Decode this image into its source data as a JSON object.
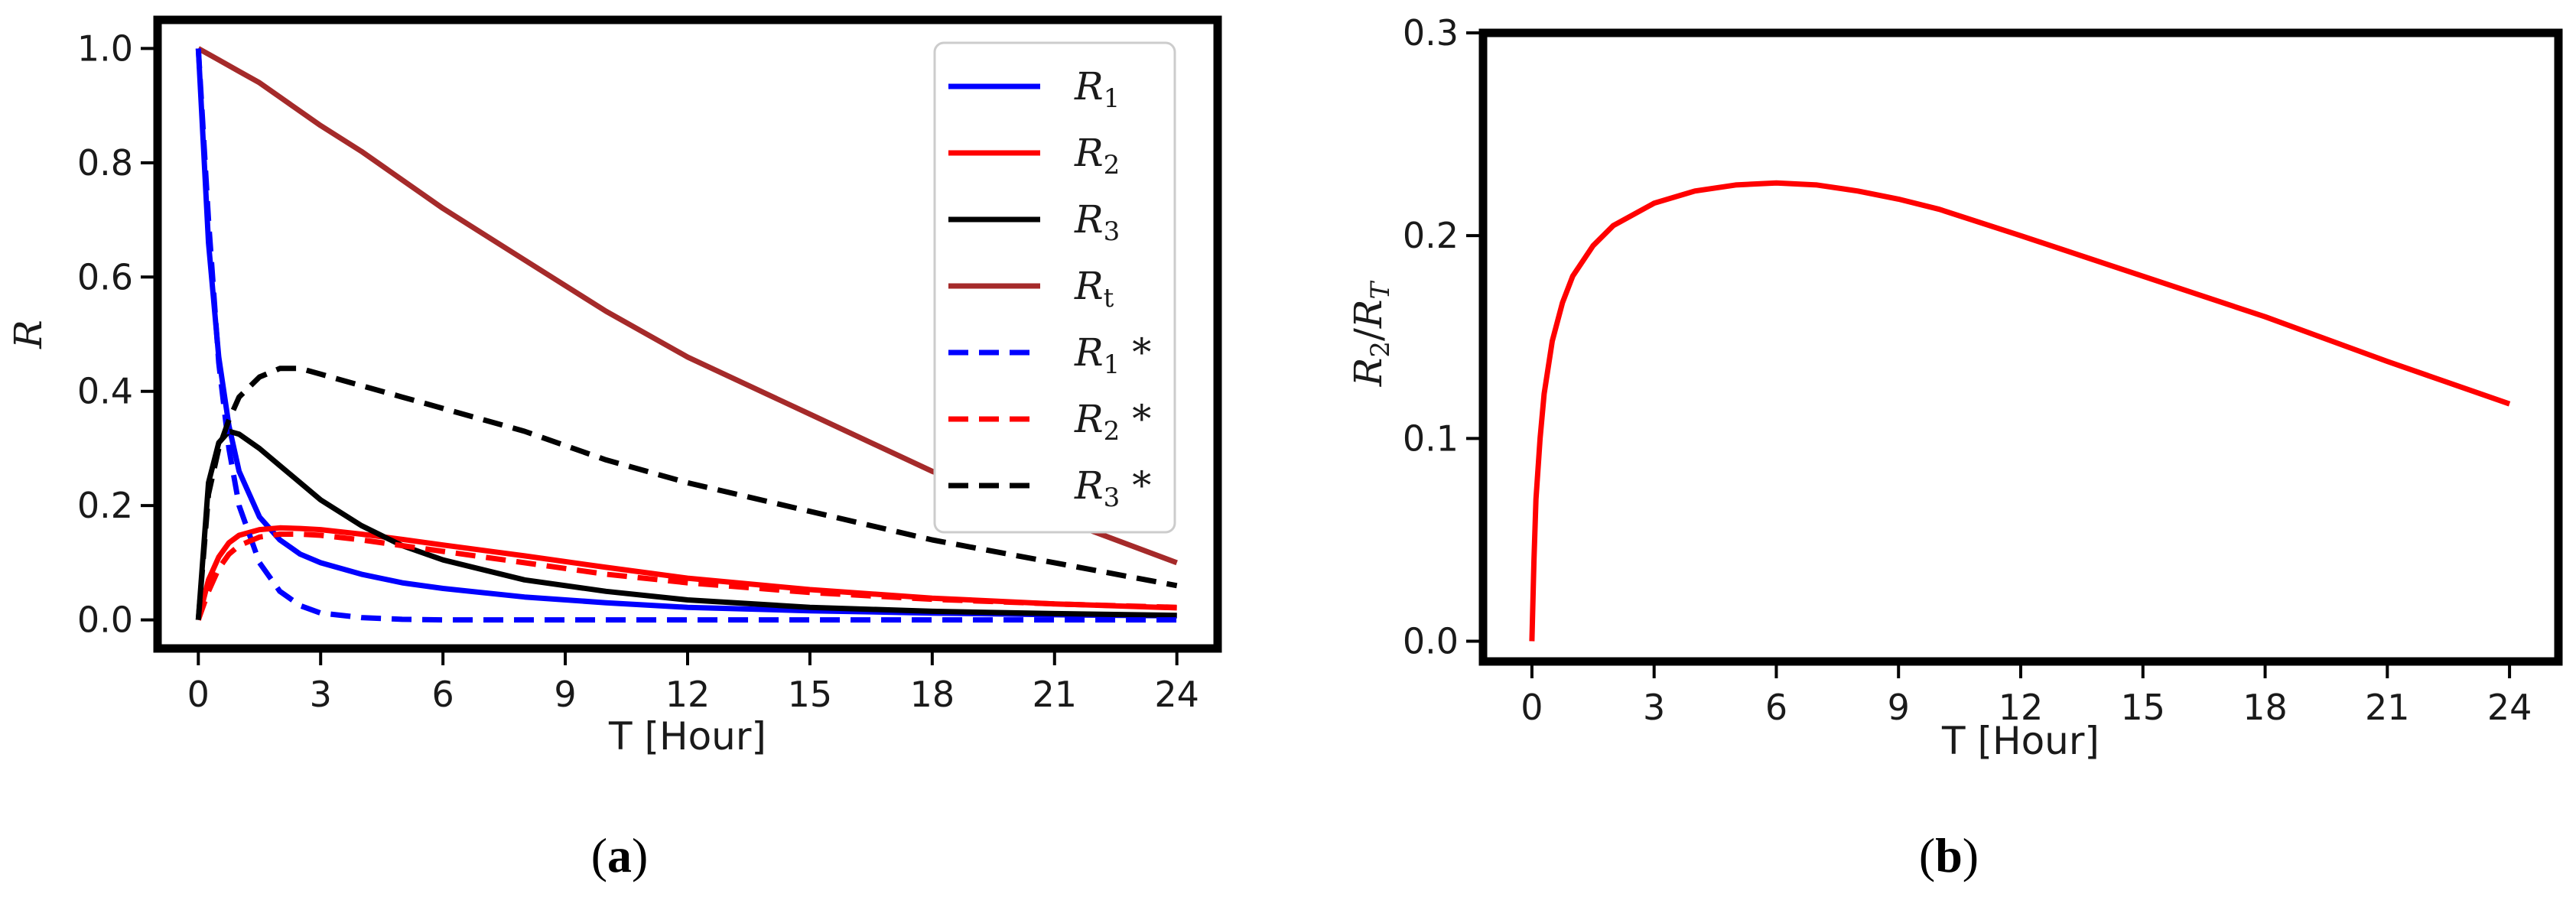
{
  "chart_data": [
    {
      "panel": "(a)",
      "type": "line",
      "xlabel": "T [Hour]",
      "ylabel": "R",
      "xlim": [
        -1,
        25
      ],
      "ylim": [
        -0.05,
        1.05
      ],
      "xticks": [
        0,
        3,
        6,
        9,
        12,
        15,
        18,
        21,
        24
      ],
      "yticks": [
        0.0,
        0.2,
        0.4,
        0.6,
        0.8,
        1.0
      ],
      "ytick_labels": [
        "0.0",
        "0.2",
        "0.4",
        "0.6",
        "0.8",
        "1.0"
      ],
      "grid": false,
      "legend_position": "top-right",
      "x": [
        0,
        0.25,
        0.5,
        0.75,
        1,
        1.5,
        2,
        2.5,
        3,
        4,
        5,
        6,
        8,
        10,
        12,
        15,
        18,
        21,
        24
      ],
      "series": [
        {
          "name": "R_1",
          "label_main": "R",
          "label_sub": "1",
          "label_suffix": "",
          "color": "#0000ff",
          "dash": "solid",
          "values": [
            1.0,
            0.66,
            0.46,
            0.34,
            0.26,
            0.18,
            0.14,
            0.115,
            0.1,
            0.08,
            0.065,
            0.055,
            0.04,
            0.03,
            0.022,
            0.016,
            0.012,
            0.009,
            0.007
          ]
        },
        {
          "name": "R_2",
          "label_main": "R",
          "label_sub": "2",
          "label_suffix": "",
          "color": "#ff0000",
          "dash": "solid",
          "values": [
            0.0,
            0.07,
            0.11,
            0.135,
            0.148,
            0.158,
            0.161,
            0.16,
            0.158,
            0.15,
            0.141,
            0.131,
            0.112,
            0.092,
            0.073,
            0.053,
            0.038,
            0.028,
            0.021
          ]
        },
        {
          "name": "R_3",
          "label_main": "R",
          "label_sub": "3",
          "label_suffix": "",
          "color": "#000000",
          "dash": "solid",
          "values": [
            0.0,
            0.24,
            0.31,
            0.33,
            0.325,
            0.3,
            0.27,
            0.24,
            0.21,
            0.165,
            0.13,
            0.105,
            0.07,
            0.05,
            0.035,
            0.022,
            0.015,
            0.011,
            0.008
          ]
        },
        {
          "name": "R_t",
          "label_main": "R",
          "label_sub": "t",
          "label_suffix": "",
          "color": "#a52a2a",
          "dash": "solid",
          "values": [
            1.0,
            0.99,
            0.98,
            0.97,
            0.96,
            0.94,
            0.915,
            0.89,
            0.865,
            0.82,
            0.77,
            0.72,
            0.63,
            0.54,
            0.46,
            0.36,
            0.26,
            0.18,
            0.1
          ]
        },
        {
          "name": "R_1 *",
          "label_main": "R",
          "label_sub": "1",
          "label_suffix": " *",
          "color": "#0000ff",
          "dash": "dashed",
          "values": [
            1.0,
            0.7,
            0.45,
            0.3,
            0.2,
            0.1,
            0.05,
            0.025,
            0.012,
            0.004,
            0.001,
            0.0,
            0.0,
            0.0,
            0.0,
            0.0,
            0.0,
            0.0,
            0.0
          ]
        },
        {
          "name": "R_2 *",
          "label_main": "R",
          "label_sub": "2",
          "label_suffix": " *",
          "color": "#ff0000",
          "dash": "dashed",
          "values": [
            0.0,
            0.05,
            0.09,
            0.115,
            0.13,
            0.145,
            0.15,
            0.15,
            0.148,
            0.14,
            0.13,
            0.12,
            0.1,
            0.08,
            0.065,
            0.048,
            0.036,
            0.028,
            0.022
          ]
        },
        {
          "name": "R_3 *",
          "label_main": "R",
          "label_sub": "3",
          "label_suffix": " *",
          "color": "#000000",
          "dash": "dashed",
          "values": [
            0.0,
            0.22,
            0.3,
            0.35,
            0.39,
            0.425,
            0.44,
            0.44,
            0.43,
            0.41,
            0.39,
            0.37,
            0.33,
            0.28,
            0.24,
            0.19,
            0.14,
            0.1,
            0.06
          ]
        }
      ]
    },
    {
      "panel": "(b)",
      "type": "line",
      "xlabel": "T [Hour]",
      "ylabel": "R_2/R_T",
      "ylabel_parts": {
        "n_main": "R",
        "n_sub": "2",
        "slash": "/",
        "d_main": "R",
        "d_sub": "T"
      },
      "xlim": [
        -1.2,
        25.2
      ],
      "ylim": [
        -0.01,
        0.3
      ],
      "xticks": [
        0,
        3,
        6,
        9,
        12,
        15,
        18,
        21,
        24
      ],
      "yticks": [
        0.0,
        0.1,
        0.2,
        0.3
      ],
      "ytick_labels": [
        "0.0",
        "0.1",
        "0.2",
        "0.3"
      ],
      "grid": false,
      "x": [
        0,
        0.05,
        0.1,
        0.2,
        0.3,
        0.5,
        0.75,
        1,
        1.5,
        2,
        3,
        4,
        5,
        6,
        7,
        8,
        9,
        10,
        12,
        15,
        18,
        21,
        24
      ],
      "series": [
        {
          "name": "",
          "color": "#ff0000",
          "dash": "solid",
          "values": [
            0.0,
            0.04,
            0.07,
            0.1,
            0.122,
            0.148,
            0.167,
            0.18,
            0.195,
            0.205,
            0.216,
            0.222,
            0.225,
            0.226,
            0.225,
            0.222,
            0.218,
            0.213,
            0.2,
            0.18,
            0.16,
            0.138,
            0.117
          ]
        }
      ]
    }
  ],
  "panel_labels": {
    "a_open": "(",
    "a": "a",
    "a_close": ")",
    "b_open": "(",
    "b": "b",
    "b_close": ")"
  }
}
